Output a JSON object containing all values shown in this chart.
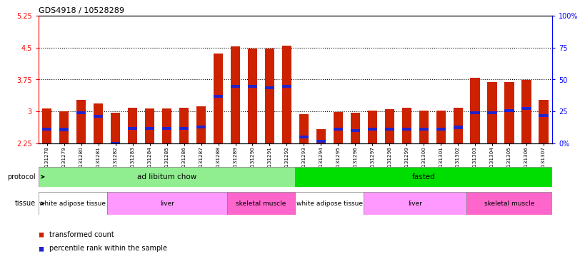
{
  "title": "GDS4918 / 10528289",
  "samples": [
    "GSM1131278",
    "GSM1131279",
    "GSM1131280",
    "GSM1131281",
    "GSM1131282",
    "GSM1131283",
    "GSM1131284",
    "GSM1131285",
    "GSM1131286",
    "GSM1131287",
    "GSM1131288",
    "GSM1131289",
    "GSM1131290",
    "GSM1131291",
    "GSM1131292",
    "GSM1131293",
    "GSM1131294",
    "GSM1131295",
    "GSM1131296",
    "GSM1131297",
    "GSM1131298",
    "GSM1131299",
    "GSM1131300",
    "GSM1131301",
    "GSM1131302",
    "GSM1131303",
    "GSM1131304",
    "GSM1131305",
    "GSM1131306",
    "GSM1131307"
  ],
  "bar_heights": [
    3.07,
    3.0,
    3.27,
    3.18,
    2.97,
    3.08,
    3.06,
    3.06,
    3.08,
    3.12,
    4.35,
    4.53,
    4.48,
    4.48,
    4.55,
    2.93,
    2.58,
    2.98,
    2.97,
    3.02,
    3.05,
    3.08,
    3.02,
    3.02,
    3.08,
    3.78,
    3.68,
    3.68,
    3.73,
    3.27
  ],
  "blue_marker_values": [
    2.58,
    2.57,
    2.97,
    2.88,
    2.25,
    2.6,
    2.6,
    2.6,
    2.6,
    2.63,
    3.35,
    3.58,
    3.58,
    3.55,
    3.58,
    2.4,
    2.3,
    2.58,
    2.55,
    2.58,
    2.58,
    2.58,
    2.58,
    2.58,
    2.62,
    2.97,
    2.97,
    3.02,
    3.07,
    2.9
  ],
  "ymin": 2.25,
  "ymax": 5.25,
  "yticks": [
    2.25,
    3.0,
    3.75,
    4.5,
    5.25
  ],
  "ytick_labels": [
    "2.25",
    "3",
    "3.75",
    "4.5",
    "5.25"
  ],
  "y2ticks": [
    2.25,
    3.0,
    3.75,
    4.5,
    5.25
  ],
  "y2tick_labels": [
    "0%",
    "25",
    "50",
    "75",
    "100%"
  ],
  "dotted_lines": [
    3.0,
    3.75,
    4.5
  ],
  "protocol_groups": [
    {
      "label": "ad libitum chow",
      "start": 0,
      "end": 14,
      "color": "#90EE90"
    },
    {
      "label": "fasted",
      "start": 15,
      "end": 29,
      "color": "#00DD00"
    }
  ],
  "tissue_groups": [
    {
      "label": "white adipose tissue",
      "start": 0,
      "end": 3,
      "color": "#ffffff"
    },
    {
      "label": "liver",
      "start": 4,
      "end": 10,
      "color": "#FF99FF"
    },
    {
      "label": "skeletal muscle",
      "start": 11,
      "end": 14,
      "color": "#FF66CC"
    },
    {
      "label": "white adipose tissue",
      "start": 15,
      "end": 18,
      "color": "#ffffff"
    },
    {
      "label": "liver",
      "start": 19,
      "end": 24,
      "color": "#FF99FF"
    },
    {
      "label": "skeletal muscle",
      "start": 25,
      "end": 29,
      "color": "#FF66CC"
    }
  ],
  "bar_color": "#CC2200",
  "blue_color": "#2222CC",
  "legend_items": [
    {
      "color": "#CC2200",
      "label": "transformed count"
    },
    {
      "color": "#2222CC",
      "label": "percentile rank within the sample"
    }
  ],
  "bar_width": 0.55
}
